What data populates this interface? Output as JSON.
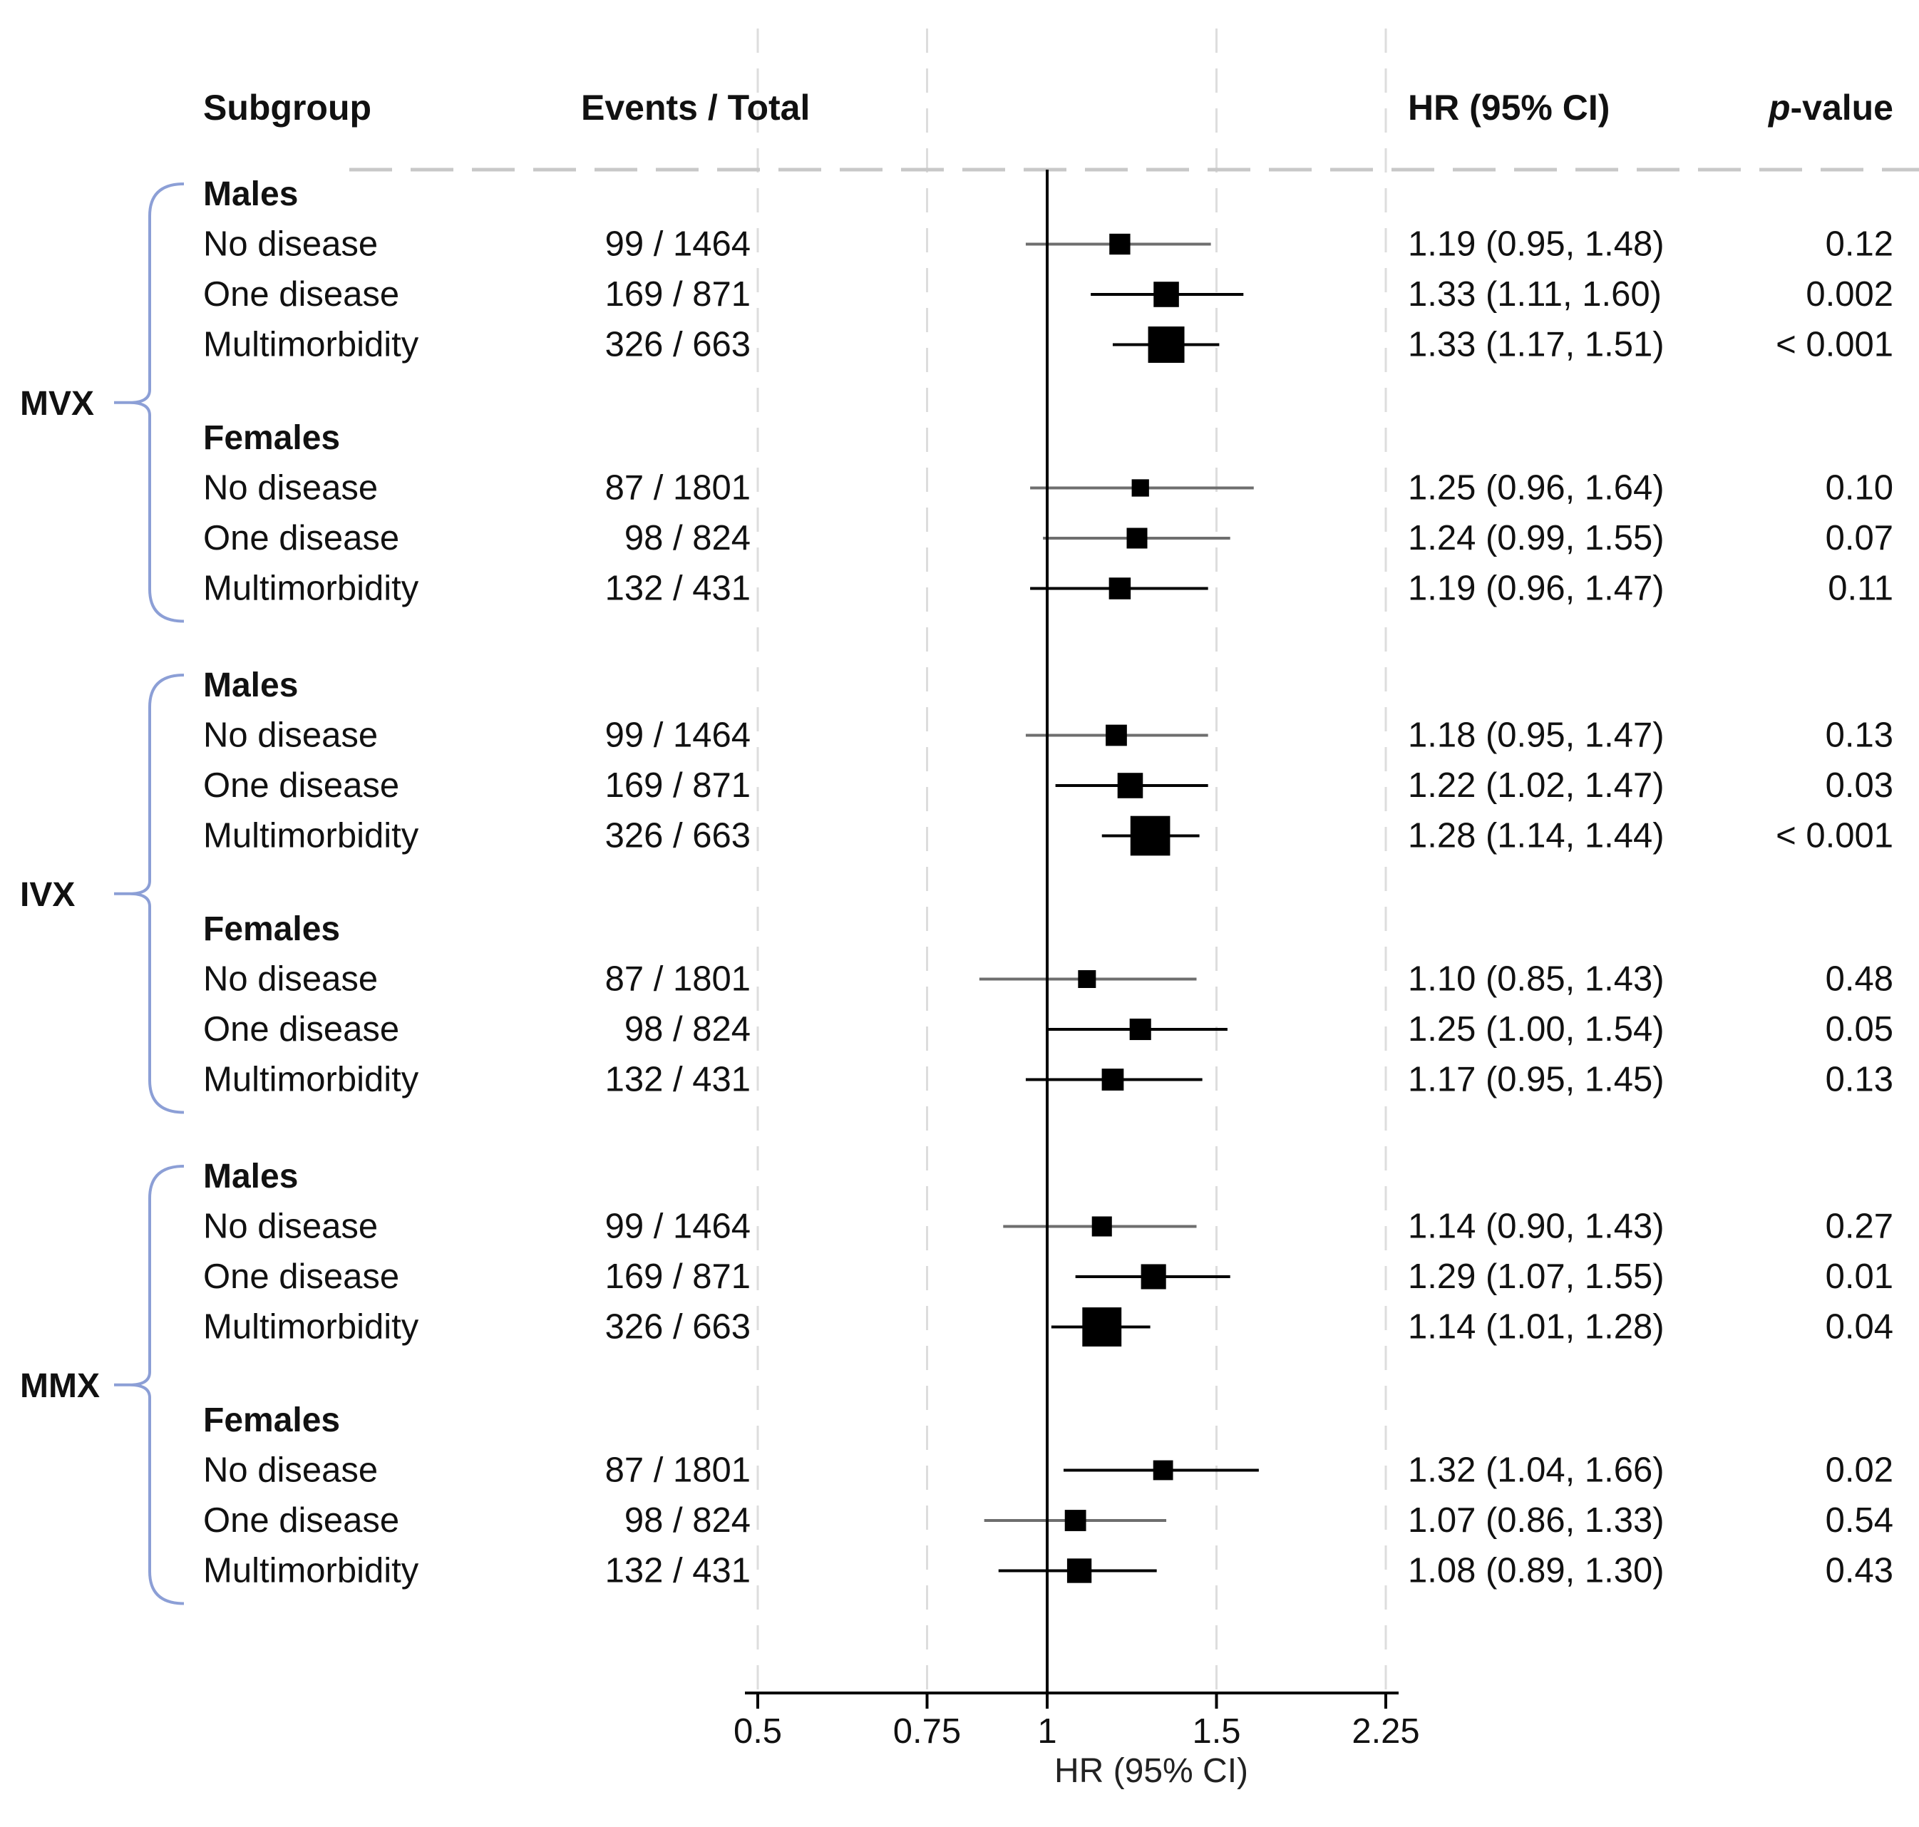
{
  "chart_data": {
    "type": "forest",
    "headers": {
      "subgroup": "Subgroup",
      "events_total": "Events / Total",
      "hr_ci": "HR (95% CI)",
      "pvalue_italic": "p",
      "pvalue_rest": "-value"
    },
    "x_axis": {
      "label": "HR (95% CI)",
      "scale": "log",
      "reference": 1,
      "ticks": [
        0.5,
        0.75,
        1,
        1.5,
        2.25
      ],
      "tick_labels": [
        "0.5",
        "0.75",
        "1",
        "1.5",
        "2.25"
      ],
      "range": [
        0.5,
        2.25
      ]
    },
    "groups": [
      {
        "name": "MVX",
        "sections": [
          {
            "name": "Males",
            "rows": [
              {
                "label": "No disease",
                "events": "99 / 1464",
                "hr": 1.19,
                "lo": 0.95,
                "hi": 1.48,
                "hr_text": "1.19 (0.95, 1.48)",
                "p": "0.12"
              },
              {
                "label": "One disease",
                "events": "169 / 871",
                "hr": 1.33,
                "lo": 1.11,
                "hi": 1.6,
                "hr_text": "1.33 (1.11, 1.60)",
                "p": "0.002"
              },
              {
                "label": "Multimorbidity",
                "events": "326 / 663",
                "hr": 1.33,
                "lo": 1.17,
                "hi": 1.51,
                "hr_text": "1.33 (1.17, 1.51)",
                "p": "< 0.001"
              }
            ]
          },
          {
            "name": "Females",
            "rows": [
              {
                "label": "No disease",
                "events": "87 / 1801",
                "hr": 1.25,
                "lo": 0.96,
                "hi": 1.64,
                "hr_text": "1.25 (0.96, 1.64)",
                "p": "0.10"
              },
              {
                "label": "One disease",
                "events": "98 / 824",
                "hr": 1.24,
                "lo": 0.99,
                "hi": 1.55,
                "hr_text": "1.24 (0.99, 1.55)",
                "p": "0.07"
              },
              {
                "label": "Multimorbidity",
                "events": "132 / 431",
                "hr": 1.19,
                "lo": 0.96,
                "hi": 1.47,
                "hr_text": "1.19 (0.96, 1.47)",
                "p": "0.11"
              }
            ]
          }
        ]
      },
      {
        "name": "IVX",
        "sections": [
          {
            "name": "Males",
            "rows": [
              {
                "label": "No disease",
                "events": "99 / 1464",
                "hr": 1.18,
                "lo": 0.95,
                "hi": 1.47,
                "hr_text": "1.18 (0.95, 1.47)",
                "p": "0.13"
              },
              {
                "label": "One disease",
                "events": "169 / 871",
                "hr": 1.22,
                "lo": 1.02,
                "hi": 1.47,
                "hr_text": "1.22 (1.02, 1.47)",
                "p": "0.03"
              },
              {
                "label": "Multimorbidity",
                "events": "326 / 663",
                "hr": 1.28,
                "lo": 1.14,
                "hi": 1.44,
                "hr_text": "1.28 (1.14, 1.44)",
                "p": "< 0.001"
              }
            ]
          },
          {
            "name": "Females",
            "rows": [
              {
                "label": "No disease",
                "events": "87 / 1801",
                "hr": 1.1,
                "lo": 0.85,
                "hi": 1.43,
                "hr_text": "1.10 (0.85, 1.43)",
                "p": "0.48"
              },
              {
                "label": "One disease",
                "events": "98 / 824",
                "hr": 1.25,
                "lo": 1.0,
                "hi": 1.54,
                "hr_text": "1.25 (1.00, 1.54)",
                "p": "0.05"
              },
              {
                "label": "Multimorbidity",
                "events": "132 / 431",
                "hr": 1.17,
                "lo": 0.95,
                "hi": 1.45,
                "hr_text": "1.17 (0.95, 1.45)",
                "p": "0.13"
              }
            ]
          }
        ]
      },
      {
        "name": "MMX",
        "sections": [
          {
            "name": "Males",
            "rows": [
              {
                "label": "No disease",
                "events": "99 / 1464",
                "hr": 1.14,
                "lo": 0.9,
                "hi": 1.43,
                "hr_text": "1.14 (0.90, 1.43)",
                "p": "0.27"
              },
              {
                "label": "One disease",
                "events": "169 / 871",
                "hr": 1.29,
                "lo": 1.07,
                "hi": 1.55,
                "hr_text": "1.29 (1.07, 1.55)",
                "p": "0.01"
              },
              {
                "label": "Multimorbidity",
                "events": "326 / 663",
                "hr": 1.14,
                "lo": 1.01,
                "hi": 1.28,
                "hr_text": "1.14 (1.01, 1.28)",
                "p": "0.04"
              }
            ]
          },
          {
            "name": "Females",
            "rows": [
              {
                "label": "No disease",
                "events": "87 / 1801",
                "hr": 1.32,
                "lo": 1.04,
                "hi": 1.66,
                "hr_text": "1.32 (1.04, 1.66)",
                "p": "0.02"
              },
              {
                "label": "One disease",
                "events": "98 / 824",
                "hr": 1.07,
                "lo": 0.86,
                "hi": 1.33,
                "hr_text": "1.07 (0.86, 1.33)",
                "p": "0.54"
              },
              {
                "label": "Multimorbidity",
                "events": "132 / 431",
                "hr": 1.08,
                "lo": 0.89,
                "hi": 1.3,
                "hr_text": "1.08 (0.89, 1.30)",
                "p": "0.43"
              }
            ]
          }
        ]
      }
    ],
    "colors": {
      "marker": "#000000",
      "ci_light": "#6e6e6e",
      "ci_dark": "#000000",
      "bracket": "#8c9fd6",
      "gridline": "#dddddd",
      "divider": "#c8c8c8"
    }
  }
}
